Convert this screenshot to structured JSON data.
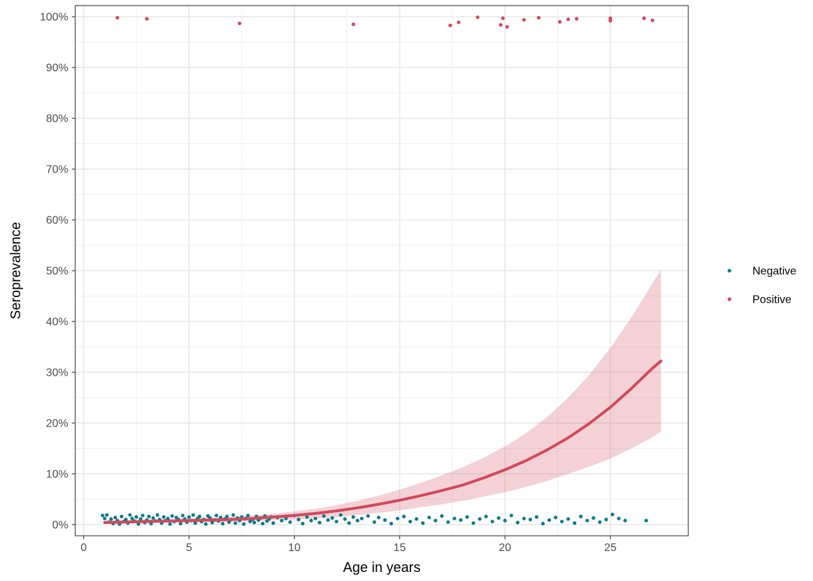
{
  "chart_data": {
    "type": "scatter",
    "xlabel": "Age in years",
    "ylabel": "Seroprevalence",
    "xlim": [
      -0.4,
      28.7
    ],
    "ylim": [
      -0.022,
      1.022
    ],
    "x_ticks": [
      0,
      5,
      10,
      15,
      20,
      25
    ],
    "x_tick_labels": [
      "0",
      "5",
      "10",
      "15",
      "20",
      "25"
    ],
    "y_ticks": [
      0,
      0.1,
      0.2,
      0.3,
      0.4,
      0.5,
      0.6,
      0.7,
      0.8,
      0.9,
      1.0
    ],
    "y_tick_labels": [
      "0%",
      "10%",
      "20%",
      "30%",
      "40%",
      "50%",
      "60%",
      "70%",
      "80%",
      "90%",
      "100%"
    ],
    "grid": true,
    "legend_position": "right",
    "series": [
      {
        "name": "Negative",
        "color": "#0e7a8c",
        "points": [
          [
            0.9,
            0.018
          ],
          [
            1.0,
            0.012
          ],
          [
            1.1,
            0.019
          ],
          [
            1.2,
            0.005
          ],
          [
            1.3,
            0.011
          ],
          [
            1.4,
            0.002
          ],
          [
            1.5,
            0.014
          ],
          [
            1.6,
            0.008
          ],
          [
            1.7,
            0.001
          ],
          [
            1.8,
            0.016
          ],
          [
            1.9,
            0.006
          ],
          [
            2.0,
            0.01
          ],
          [
            2.1,
            0.003
          ],
          [
            2.2,
            0.019
          ],
          [
            2.3,
            0.012
          ],
          [
            2.4,
            0.007
          ],
          [
            2.5,
            0.015
          ],
          [
            2.6,
            0.001
          ],
          [
            2.7,
            0.011
          ],
          [
            2.8,
            0.018
          ],
          [
            2.9,
            0.004
          ],
          [
            3.0,
            0.009
          ],
          [
            3.1,
            0.016
          ],
          [
            3.2,
            0.002
          ],
          [
            3.3,
            0.013
          ],
          [
            3.4,
            0.007
          ],
          [
            3.5,
            0.019
          ],
          [
            3.6,
            0.01
          ],
          [
            3.7,
            0.003
          ],
          [
            3.8,
            0.015
          ],
          [
            3.9,
            0.008
          ],
          [
            4.0,
            0.012
          ],
          [
            4.1,
            0.001
          ],
          [
            4.2,
            0.017
          ],
          [
            4.3,
            0.006
          ],
          [
            4.4,
            0.014
          ],
          [
            4.5,
            0.01
          ],
          [
            4.6,
            0.002
          ],
          [
            4.7,
            0.018
          ],
          [
            4.8,
            0.011
          ],
          [
            4.9,
            0.005
          ],
          [
            5.0,
            0.015
          ],
          [
            5.1,
            0.008
          ],
          [
            5.2,
            0.019
          ],
          [
            5.3,
            0.003
          ],
          [
            5.4,
            0.012
          ],
          [
            5.5,
            0.016
          ],
          [
            5.6,
            0.006
          ],
          [
            5.7,
            0.01
          ],
          [
            5.8,
            0.001
          ],
          [
            5.9,
            0.017
          ],
          [
            6.0,
            0.013
          ],
          [
            6.1,
            0.004
          ],
          [
            6.2,
            0.009
          ],
          [
            6.3,
            0.018
          ],
          [
            6.4,
            0.007
          ],
          [
            6.5,
            0.014
          ],
          [
            6.6,
            0.002
          ],
          [
            6.7,
            0.011
          ],
          [
            6.8,
            0.016
          ],
          [
            6.9,
            0.005
          ],
          [
            7.0,
            0.01
          ],
          [
            7.1,
            0.019
          ],
          [
            7.2,
            0.003
          ],
          [
            7.3,
            0.013
          ],
          [
            7.4,
            0.008
          ],
          [
            7.5,
            0.015
          ],
          [
            7.6,
            0.001
          ],
          [
            7.7,
            0.012
          ],
          [
            7.8,
            0.018
          ],
          [
            7.9,
            0.006
          ],
          [
            8.0,
            0.01
          ],
          [
            8.1,
            0.004
          ],
          [
            8.2,
            0.016
          ],
          [
            8.3,
            0.009
          ],
          [
            8.4,
            0.013
          ],
          [
            8.5,
            0.002
          ],
          [
            8.6,
            0.017
          ],
          [
            8.7,
            0.007
          ],
          [
            8.8,
            0.011
          ],
          [
            8.9,
            0.015
          ],
          [
            9.0,
            0.003
          ],
          [
            9.2,
            0.014
          ],
          [
            9.4,
            0.008
          ],
          [
            9.6,
            0.012
          ],
          [
            9.8,
            0.005
          ],
          [
            10.0,
            0.018
          ],
          [
            10.2,
            0.01
          ],
          [
            10.4,
            0.002
          ],
          [
            10.6,
            0.015
          ],
          [
            10.8,
            0.008
          ],
          [
            11.0,
            0.012
          ],
          [
            11.2,
            0.004
          ],
          [
            11.4,
            0.017
          ],
          [
            11.6,
            0.009
          ],
          [
            11.8,
            0.013
          ],
          [
            12.0,
            0.006
          ],
          [
            12.2,
            0.019
          ],
          [
            12.4,
            0.011
          ],
          [
            12.6,
            0.003
          ],
          [
            12.8,
            0.015
          ],
          [
            13.0,
            0.008
          ],
          [
            13.2,
            0.012
          ],
          [
            13.5,
            0.017
          ],
          [
            13.8,
            0.005
          ],
          [
            14.0,
            0.014
          ],
          [
            14.3,
            0.009
          ],
          [
            14.6,
            0.002
          ],
          [
            14.9,
            0.012
          ],
          [
            15.2,
            0.016
          ],
          [
            15.5,
            0.006
          ],
          [
            15.8,
            0.011
          ],
          [
            16.1,
            0.003
          ],
          [
            16.4,
            0.014
          ],
          [
            16.7,
            0.008
          ],
          [
            17.0,
            0.017
          ],
          [
            17.3,
            0.005
          ],
          [
            17.6,
            0.012
          ],
          [
            17.9,
            0.009
          ],
          [
            18.2,
            0.015
          ],
          [
            18.5,
            0.003
          ],
          [
            18.8,
            0.011
          ],
          [
            19.1,
            0.016
          ],
          [
            19.4,
            0.006
          ],
          [
            19.7,
            0.013
          ],
          [
            20.0,
            0.008
          ],
          [
            20.3,
            0.018
          ],
          [
            20.6,
            0.004
          ],
          [
            20.9,
            0.012
          ],
          [
            21.2,
            0.01
          ],
          [
            21.5,
            0.015
          ],
          [
            21.8,
            0.002
          ],
          [
            22.1,
            0.009
          ],
          [
            22.4,
            0.014
          ],
          [
            22.7,
            0.006
          ],
          [
            23.0,
            0.011
          ],
          [
            23.3,
            0.003
          ],
          [
            23.6,
            0.016
          ],
          [
            23.9,
            0.008
          ],
          [
            24.2,
            0.013
          ],
          [
            24.5,
            0.005
          ],
          [
            24.8,
            0.01
          ],
          [
            25.1,
            0.02
          ],
          [
            25.4,
            0.012
          ],
          [
            25.7,
            0.008
          ],
          [
            26.7,
            0.008
          ]
        ]
      },
      {
        "name": "Positive",
        "color": "#d1495b",
        "points": [
          [
            1.6,
            0.998
          ],
          [
            3.0,
            0.996
          ],
          [
            7.4,
            0.987
          ],
          [
            12.8,
            0.985
          ],
          [
            17.4,
            0.983
          ],
          [
            17.8,
            0.989
          ],
          [
            18.7,
            0.999
          ],
          [
            19.8,
            0.984
          ],
          [
            19.9,
            0.997
          ],
          [
            20.1,
            0.98
          ],
          [
            20.9,
            0.994
          ],
          [
            21.6,
            0.998
          ],
          [
            22.6,
            0.99
          ],
          [
            23.0,
            0.995
          ],
          [
            23.4,
            0.996
          ],
          [
            25.0,
            0.992
          ],
          [
            25.0,
            0.997
          ],
          [
            26.6,
            0.997
          ],
          [
            27.0,
            0.993
          ]
        ]
      }
    ],
    "fit": {
      "color": "#d1495b",
      "x": [
        1,
        2,
        3,
        4,
        5,
        6,
        7,
        8,
        9,
        10,
        11,
        12,
        13,
        14,
        15,
        16,
        17,
        18,
        19,
        20,
        21,
        22,
        23,
        24,
        25,
        26,
        27,
        27.4
      ],
      "y": [
        0.004,
        0.005,
        0.006,
        0.007,
        0.008,
        0.009,
        0.01,
        0.012,
        0.015,
        0.018,
        0.022,
        0.027,
        0.033,
        0.04,
        0.048,
        0.057,
        0.067,
        0.078,
        0.092,
        0.108,
        0.126,
        0.147,
        0.171,
        0.199,
        0.231,
        0.268,
        0.308,
        0.322
      ],
      "lower": [
        0.002,
        0.003,
        0.003,
        0.004,
        0.004,
        0.005,
        0.006,
        0.007,
        0.008,
        0.01,
        0.012,
        0.015,
        0.019,
        0.023,
        0.028,
        0.034,
        0.04,
        0.047,
        0.055,
        0.064,
        0.074,
        0.086,
        0.1,
        0.114,
        0.13,
        0.15,
        0.172,
        0.183
      ],
      "upper": [
        0.008,
        0.009,
        0.01,
        0.011,
        0.012,
        0.013,
        0.015,
        0.018,
        0.021,
        0.026,
        0.031,
        0.038,
        0.047,
        0.057,
        0.069,
        0.082,
        0.097,
        0.113,
        0.132,
        0.154,
        0.18,
        0.212,
        0.25,
        0.295,
        0.348,
        0.408,
        0.475,
        0.502
      ]
    }
  }
}
